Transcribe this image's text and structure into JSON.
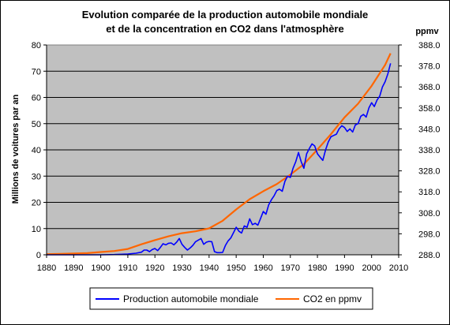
{
  "chart_data": {
    "type": "line",
    "title_line1": "Evolution comparée de la production automobile mondiale",
    "title_line2": "et de la concentration en CO2 dans l'atmosphère",
    "ylabel": "Millions de voitures par an",
    "y2label": "ppmv",
    "xlim": [
      1880,
      2010
    ],
    "ylim": [
      0,
      80
    ],
    "y2lim": [
      288.0,
      388.0
    ],
    "x_ticks": [
      "1880",
      "1890",
      "1900",
      "1910",
      "1920",
      "1930",
      "1940",
      "1950",
      "1960",
      "1970",
      "1980",
      "1990",
      "2000",
      "2010"
    ],
    "y_ticks": [
      "0",
      "10",
      "20",
      "30",
      "40",
      "50",
      "60",
      "70",
      "80"
    ],
    "y2_ticks": [
      "288.0",
      "298.0",
      "308.0",
      "318.0",
      "328.0",
      "338.0",
      "348.0",
      "358.0",
      "368.0",
      "378.0",
      "388.0"
    ],
    "grid": true,
    "legend_position": "bottom",
    "colors": {
      "plot_bg": "#c0c0c0",
      "production": "#0000ff",
      "co2": "#ff6600"
    },
    "series": [
      {
        "name": "Production automobile mondiale",
        "axis": "left",
        "points": [
          [
            1880,
            0
          ],
          [
            1900,
            0
          ],
          [
            1905,
            0.1
          ],
          [
            1910,
            0.3
          ],
          [
            1913,
            0.6
          ],
          [
            1915,
            1.0
          ],
          [
            1916,
            1.8
          ],
          [
            1917,
            1.8
          ],
          [
            1918,
            1.2
          ],
          [
            1919,
            2.0
          ],
          [
            1920,
            2.4
          ],
          [
            1921,
            1.6
          ],
          [
            1922,
            2.8
          ],
          [
            1923,
            4.2
          ],
          [
            1924,
            3.8
          ],
          [
            1925,
            4.4
          ],
          [
            1926,
            4.5
          ],
          [
            1927,
            3.8
          ],
          [
            1928,
            4.8
          ],
          [
            1929,
            6.2
          ],
          [
            1930,
            4.0
          ],
          [
            1931,
            2.8
          ],
          [
            1932,
            1.8
          ],
          [
            1933,
            2.6
          ],
          [
            1934,
            3.6
          ],
          [
            1935,
            5.0
          ],
          [
            1936,
            5.6
          ],
          [
            1937,
            6.2
          ],
          [
            1938,
            4.0
          ],
          [
            1939,
            4.8
          ],
          [
            1940,
            5.1
          ],
          [
            1941,
            5.0
          ],
          [
            1942,
            1.2
          ],
          [
            1943,
            0.8
          ],
          [
            1944,
            0.8
          ],
          [
            1945,
            0.9
          ],
          [
            1946,
            3.5
          ],
          [
            1947,
            5.3
          ],
          [
            1948,
            6.4
          ],
          [
            1949,
            8.4
          ],
          [
            1950,
            10.5
          ],
          [
            1951,
            9.0
          ],
          [
            1952,
            8.3
          ],
          [
            1953,
            11.0
          ],
          [
            1954,
            10.5
          ],
          [
            1955,
            13.7
          ],
          [
            1956,
            11.5
          ],
          [
            1957,
            12.0
          ],
          [
            1958,
            11.3
          ],
          [
            1959,
            13.8
          ],
          [
            1960,
            16.5
          ],
          [
            1961,
            15.5
          ],
          [
            1962,
            19.0
          ],
          [
            1963,
            21.0
          ],
          [
            1964,
            22.5
          ],
          [
            1965,
            24.5
          ],
          [
            1966,
            25.0
          ],
          [
            1967,
            24.2
          ],
          [
            1968,
            28.0
          ],
          [
            1969,
            30.0
          ],
          [
            1970,
            29.5
          ],
          [
            1971,
            33.0
          ],
          [
            1972,
            35.5
          ],
          [
            1973,
            39.0
          ],
          [
            1974,
            35.5
          ],
          [
            1975,
            33.0
          ],
          [
            1976,
            38.5
          ],
          [
            1977,
            40.5
          ],
          [
            1978,
            42.3
          ],
          [
            1979,
            41.5
          ],
          [
            1980,
            38.5
          ],
          [
            1981,
            37.2
          ],
          [
            1982,
            36.0
          ],
          [
            1983,
            40.0
          ],
          [
            1984,
            43.0
          ],
          [
            1985,
            45.0
          ],
          [
            1986,
            45.5
          ],
          [
            1987,
            46.0
          ],
          [
            1988,
            48.0
          ],
          [
            1989,
            49.2
          ],
          [
            1990,
            48.5
          ],
          [
            1991,
            47.0
          ],
          [
            1992,
            48.0
          ],
          [
            1993,
            46.8
          ],
          [
            1994,
            49.5
          ],
          [
            1995,
            50.0
          ],
          [
            1996,
            52.8
          ],
          [
            1997,
            53.5
          ],
          [
            1998,
            52.5
          ],
          [
            1999,
            56.0
          ],
          [
            2000,
            58.0
          ],
          [
            2001,
            56.5
          ],
          [
            2002,
            59.0
          ],
          [
            2003,
            60.5
          ],
          [
            2004,
            64.0
          ],
          [
            2005,
            66.0
          ],
          [
            2006,
            69.0
          ],
          [
            2007,
            73.0
          ]
        ]
      },
      {
        "name": "CO2 en ppmv",
        "axis": "right",
        "points": [
          [
            1880,
            288.3
          ],
          [
            1885,
            288.4
          ],
          [
            1890,
            288.6
          ],
          [
            1895,
            288.8
          ],
          [
            1900,
            289.3
          ],
          [
            1905,
            289.8
          ],
          [
            1910,
            290.8
          ],
          [
            1915,
            293.0
          ],
          [
            1920,
            295.0
          ],
          [
            1925,
            296.8
          ],
          [
            1930,
            298.3
          ],
          [
            1935,
            299.2
          ],
          [
            1940,
            300.6
          ],
          [
            1945,
            304.2
          ],
          [
            1950,
            309.6
          ],
          [
            1955,
            314.5
          ],
          [
            1960,
            318.3
          ],
          [
            1965,
            321.7
          ],
          [
            1970,
            326.2
          ],
          [
            1975,
            331.2
          ],
          [
            1980,
            338.2
          ],
          [
            1985,
            345.5
          ],
          [
            1990,
            353.5
          ],
          [
            1995,
            360.0
          ],
          [
            2000,
            368.5
          ],
          [
            2005,
            378.5
          ],
          [
            2007,
            384.0
          ]
        ]
      }
    ]
  }
}
